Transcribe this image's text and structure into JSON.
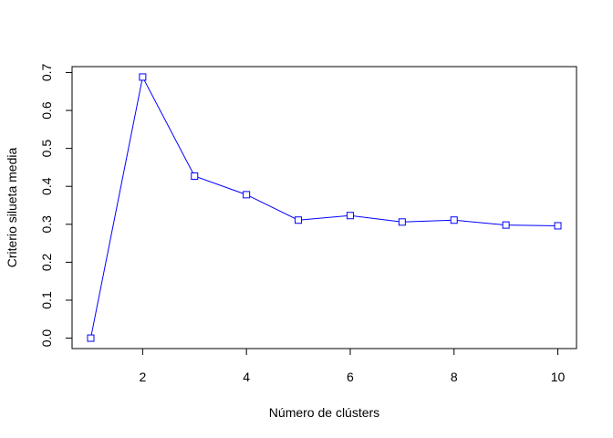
{
  "chart_data": {
    "type": "line",
    "title": "",
    "xlabel": "Número de clústers",
    "ylabel": "Criterio silueta media",
    "x": [
      1,
      2,
      3,
      4,
      5,
      6,
      7,
      8,
      9,
      10
    ],
    "series": [
      {
        "values": [
          0.0,
          0.688,
          0.427,
          0.378,
          0.311,
          0.323,
          0.306,
          0.311,
          0.298,
          0.296
        ],
        "color": "#0000ff",
        "marker": "open-square"
      }
    ],
    "xlim": [
      0.64,
      10.36
    ],
    "ylim": [
      -0.0275,
      0.7155
    ],
    "xticks": [
      2,
      4,
      6,
      8,
      10
    ],
    "xtick_labels": [
      "2",
      "4",
      "6",
      "8",
      "10"
    ],
    "yticks": [
      0.0,
      0.1,
      0.2,
      0.3,
      0.4,
      0.5,
      0.6,
      0.7
    ],
    "ytick_labels": [
      "0.0",
      "0.1",
      "0.2",
      "0.3",
      "0.4",
      "0.5",
      "0.6",
      "0.7"
    ],
    "grid": false,
    "legend": "none",
    "box": true
  }
}
